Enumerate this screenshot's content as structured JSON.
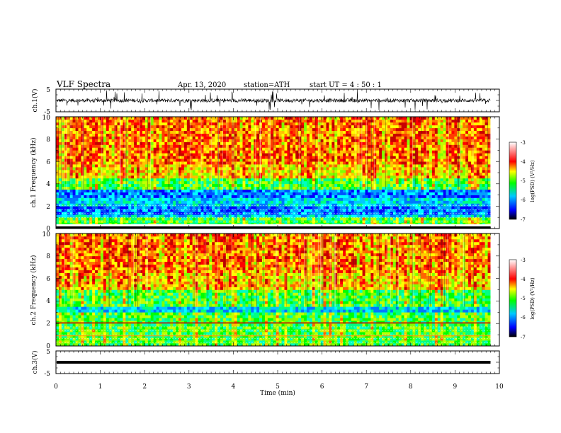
{
  "header": {
    "title": "VLF  Spectra",
    "date": "Apr. 13, 2020",
    "station": "station=ATH",
    "start": "start  UT  =   4  : 50 : 1"
  },
  "chart_data": [
    {
      "type": "line",
      "panel": "ch1-waveform",
      "ylabel": "ch.1(V)",
      "yticks": [
        "5",
        "-5"
      ],
      "ylim": [
        -5,
        5
      ],
      "color": "#000000"
    },
    {
      "type": "heatmap",
      "panel": "ch1-spectrogram",
      "ylabel": "ch.1 Frequency (kHz)",
      "yticks": [
        "0",
        "2",
        "4",
        "6",
        "8",
        "10"
      ],
      "ylim": [
        0,
        10
      ],
      "colorbar": {
        "label": "log(PSD) (V²/Hz)",
        "ticks": [
          "-3",
          "-4",
          "-5",
          "-6",
          "-7"
        ],
        "range": [
          -7,
          -3
        ],
        "colors": [
          "#000000",
          "#0000ff",
          "#00c8ff",
          "#00ff00",
          "#ffff00",
          "#ff0000",
          "#ffffff"
        ]
      },
      "bands": [
        {
          "from_khz": 0.0,
          "to_khz": 0.25,
          "level": "black"
        },
        {
          "from_khz": 0.25,
          "to_khz": 0.9,
          "level": "green"
        },
        {
          "from_khz": 0.9,
          "to_khz": 1.3,
          "level": "cyan"
        },
        {
          "from_khz": 1.3,
          "to_khz": 2.1,
          "level": "blue"
        },
        {
          "from_khz": 2.1,
          "to_khz": 2.7,
          "level": "cyan"
        },
        {
          "from_khz": 2.7,
          "to_khz": 3.6,
          "level": "blue"
        },
        {
          "from_khz": 3.6,
          "to_khz": 4.6,
          "level": "green"
        },
        {
          "from_khz": 4.6,
          "to_khz": 5.8,
          "level": "yellow"
        },
        {
          "from_khz": 5.8,
          "to_khz": 10.0,
          "level": "red"
        }
      ]
    },
    {
      "type": "heatmap",
      "panel": "ch2-spectrogram",
      "ylabel": "ch.2 Frequency (kHz)",
      "yticks": [
        "0",
        "2",
        "4",
        "6",
        "8",
        "10"
      ],
      "ylim": [
        0,
        10
      ],
      "colorbar": {
        "label": "log(PSD) (V²/Hz)",
        "ticks": [
          "-3",
          "-4",
          "-5",
          "-6",
          "-7"
        ],
        "range": [
          -7,
          -3
        ],
        "colors": [
          "#000000",
          "#0000ff",
          "#00c8ff",
          "#00ff00",
          "#ffff00",
          "#ff0000",
          "#ffffff"
        ]
      },
      "bands": [
        {
          "from_khz": 0.0,
          "to_khz": 0.9,
          "level": "green"
        },
        {
          "from_khz": 0.9,
          "to_khz": 2.0,
          "level": "green"
        },
        {
          "from_khz": 2.0,
          "to_khz": 2.1,
          "level": "red"
        },
        {
          "from_khz": 2.1,
          "to_khz": 3.0,
          "level": "green"
        },
        {
          "from_khz": 3.0,
          "to_khz": 3.6,
          "level": "cyan"
        },
        {
          "from_khz": 3.6,
          "to_khz": 5.0,
          "level": "green"
        },
        {
          "from_khz": 5.0,
          "to_khz": 6.5,
          "level": "yellow"
        },
        {
          "from_khz": 6.5,
          "to_khz": 10.0,
          "level": "red"
        }
      ]
    },
    {
      "type": "line",
      "panel": "ch3-waveform",
      "ylabel": "ch.3(V)",
      "yticks": [
        "5",
        "-5"
      ],
      "ylim": [
        -5,
        5
      ],
      "values_flat": 0,
      "color": "#000000"
    }
  ],
  "xaxis": {
    "label": "Time  (min)",
    "ticks": [
      "0",
      "1",
      "2",
      "3",
      "4",
      "5",
      "6",
      "7",
      "8",
      "9",
      "10"
    ],
    "xlim": [
      0,
      10
    ],
    "data_end_min": 9.8
  }
}
